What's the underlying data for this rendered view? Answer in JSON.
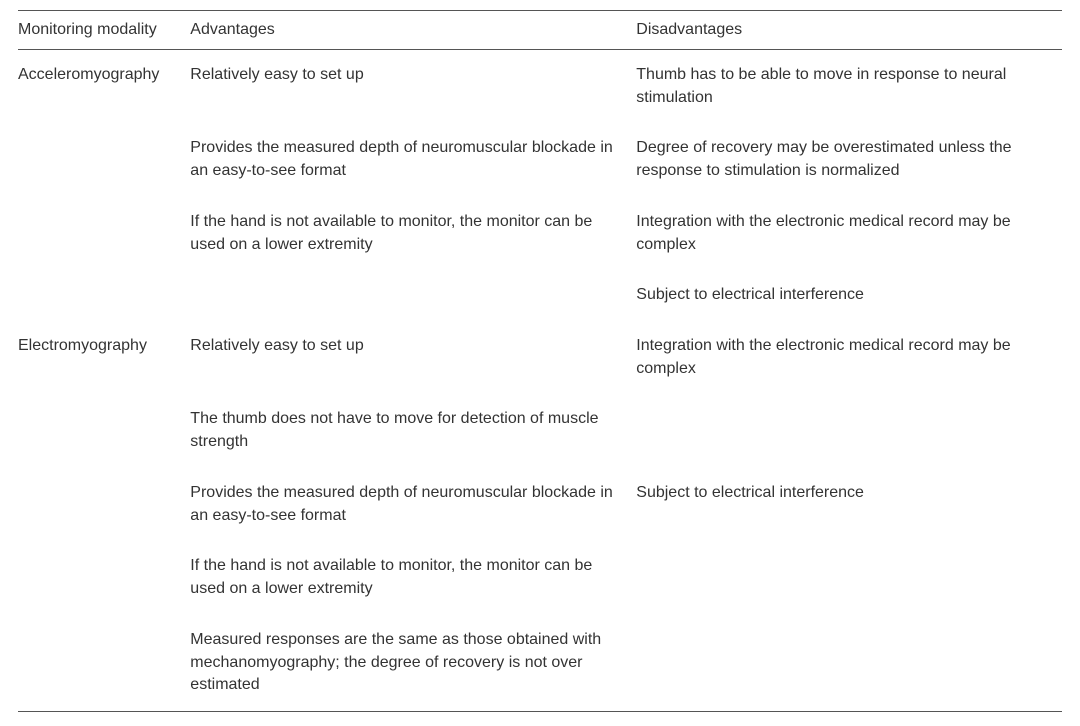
{
  "columns": {
    "modality": "Monitoring modality",
    "advantages": "Advantages",
    "disadvantages": "Disadvantages"
  },
  "rows": [
    {
      "modality": "Acceleromyography",
      "advantages": [
        "Relatively easy to set up",
        "Provides the measured depth of neuromuscular blockade in an easy-to-see format",
        "If the hand is not available to monitor, the monitor can be used on a lower extremity"
      ],
      "disadvantages": [
        "Thumb has to be able to move in response to neural stimulation",
        "Degree of recovery may be overestimated unless the response to stimulation is normalized",
        "Integration with the electronic medical record may be complex",
        "Subject to electrical interference"
      ]
    },
    {
      "modality": "Electromyography",
      "advantages": [
        "Relatively easy to set up",
        "The thumb does not have to move for detection of muscle strength",
        "Provides the measured depth of neuromuscular blockade in an easy-to-see format",
        "If the hand is not available to monitor, the monitor can be used on a lower extremity",
        "Measured responses are the same as those obtained with mechanomyography; the degree of recovery is not over estimated"
      ],
      "disadvantages": [
        "Integration with the electronic medical record may be complex",
        "",
        "Subject to electrical interference"
      ]
    }
  ]
}
